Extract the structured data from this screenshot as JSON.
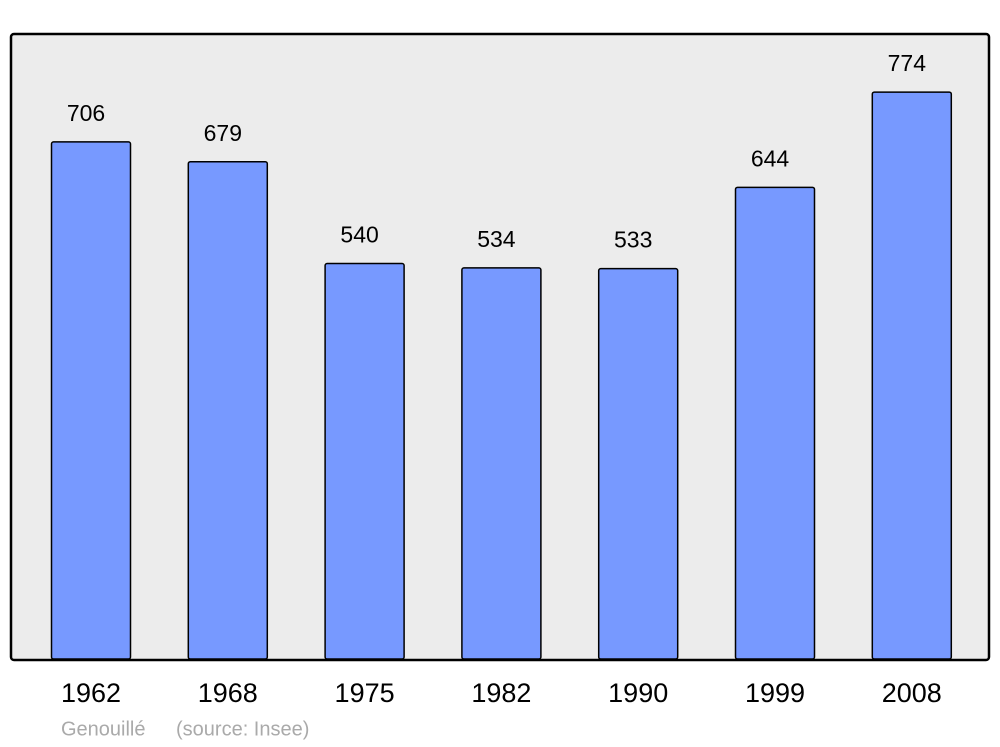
{
  "chart_data": {
    "type": "bar",
    "categories": [
      "1962",
      "1968",
      "1975",
      "1982",
      "1990",
      "1999",
      "2008"
    ],
    "values": [
      706,
      679,
      540,
      534,
      533,
      644,
      774
    ],
    "color": "#7799ff",
    "ylim": [
      0,
      852
    ],
    "caption": {
      "place": "Genouillé",
      "source": "(source: Insee)"
    }
  }
}
